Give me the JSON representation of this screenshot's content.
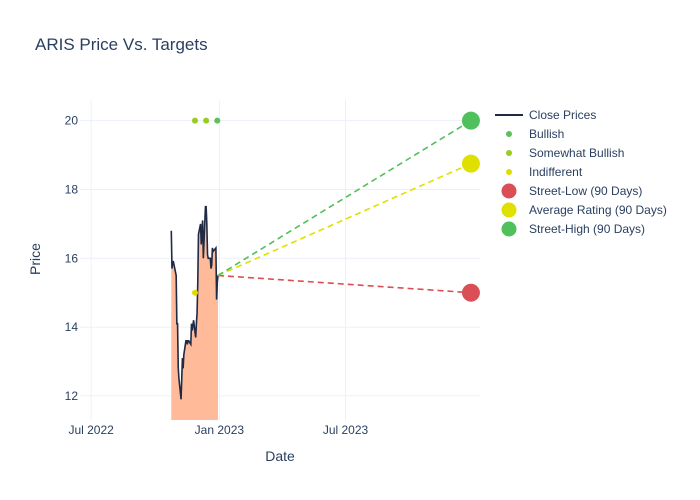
{
  "chart_data": {
    "type": "line",
    "title": "ARIS Price Vs. Targets",
    "xlabel": "Date",
    "ylabel": "Price",
    "x_range": [
      "2022-06-15",
      "2024-01-10"
    ],
    "ylim": [
      11.3,
      20.6
    ],
    "x_ticks": [
      {
        "date": "2022-07-01",
        "label": "Jul 2022"
      },
      {
        "date": "2023-01-01",
        "label": "Jan 2023"
      },
      {
        "date": "2023-07-01",
        "label": "Jul 2023"
      }
    ],
    "y_ticks": [
      12,
      14,
      16,
      18,
      20
    ],
    "grid": true,
    "legend_position": "top-right",
    "close_prices": {
      "name": "Close Prices",
      "color": "#1f2a44",
      "fill_color": "#ffbb99",
      "points": [
        [
          "2022-10-24",
          16.8
        ],
        [
          "2022-10-25",
          15.7
        ],
        [
          "2022-10-26",
          15.9
        ],
        [
          "2022-10-27",
          15.9
        ],
        [
          "2022-10-28",
          15.8
        ],
        [
          "2022-10-31",
          15.5
        ],
        [
          "2022-11-01",
          14.1
        ],
        [
          "2022-11-02",
          14.1
        ],
        [
          "2022-11-03",
          12.8
        ],
        [
          "2022-11-04",
          12.5
        ],
        [
          "2022-11-07",
          11.9
        ],
        [
          "2022-11-08",
          12.5
        ],
        [
          "2022-11-09",
          13.1
        ],
        [
          "2022-11-10",
          12.8
        ],
        [
          "2022-11-11",
          13.2
        ],
        [
          "2022-11-14",
          13.6
        ],
        [
          "2022-11-15",
          13.6
        ],
        [
          "2022-11-16",
          13.5
        ],
        [
          "2022-11-17",
          13.6
        ],
        [
          "2022-11-18",
          13.6
        ],
        [
          "2022-11-21",
          13.5
        ],
        [
          "2022-11-22",
          14.1
        ],
        [
          "2022-11-23",
          13.9
        ],
        [
          "2022-11-25",
          14.2
        ],
        [
          "2022-11-28",
          13.7
        ],
        [
          "2022-11-29",
          14.1
        ],
        [
          "2022-11-30",
          14.4
        ],
        [
          "2022-12-01",
          15.3
        ],
        [
          "2022-12-02",
          16.7
        ],
        [
          "2022-12-05",
          17.0
        ],
        [
          "2022-12-06",
          16.4
        ],
        [
          "2022-12-07",
          16.8
        ],
        [
          "2022-12-08",
          17.1
        ],
        [
          "2022-12-09",
          16.0
        ],
        [
          "2022-12-12",
          17.5
        ],
        [
          "2022-12-13",
          17.5
        ],
        [
          "2022-12-14",
          17.0
        ],
        [
          "2022-12-15",
          16.1
        ],
        [
          "2022-12-16",
          16.0
        ],
        [
          "2022-12-19",
          16.0
        ],
        [
          "2022-12-20",
          15.7
        ],
        [
          "2022-12-21",
          15.8
        ],
        [
          "2022-12-22",
          16.3
        ],
        [
          "2022-12-23",
          16.2
        ],
        [
          "2022-12-27",
          16.3
        ],
        [
          "2022-12-28",
          14.8
        ],
        [
          "2022-12-29",
          15.3
        ],
        [
          "2022-12-30",
          15.5
        ]
      ]
    },
    "ratings": [
      {
        "name": "Bullish",
        "color": "#5cc05c",
        "points": [
          [
            "2022-12-29",
            20
          ]
        ]
      },
      {
        "name": "Somewhat Bullish",
        "color": "#99cc22",
        "points": [
          [
            "2022-11-27",
            20
          ],
          [
            "2022-12-13",
            20
          ]
        ]
      },
      {
        "name": "Indifferent",
        "color": "#dddd00",
        "points": [
          [
            "2022-11-27",
            15
          ]
        ]
      }
    ],
    "targets": {
      "start": [
        "2022-12-30",
        15.5
      ],
      "end_date": "2023-12-28",
      "series": [
        {
          "name": "Street-Low (90 Days)",
          "value": 15,
          "color": "#d94f55"
        },
        {
          "name": "Average Rating (90 Days)",
          "value": 18.75,
          "color": "#e0e000"
        },
        {
          "name": "Street-High (90 Days)",
          "value": 20,
          "color": "#50c05c"
        }
      ]
    }
  }
}
